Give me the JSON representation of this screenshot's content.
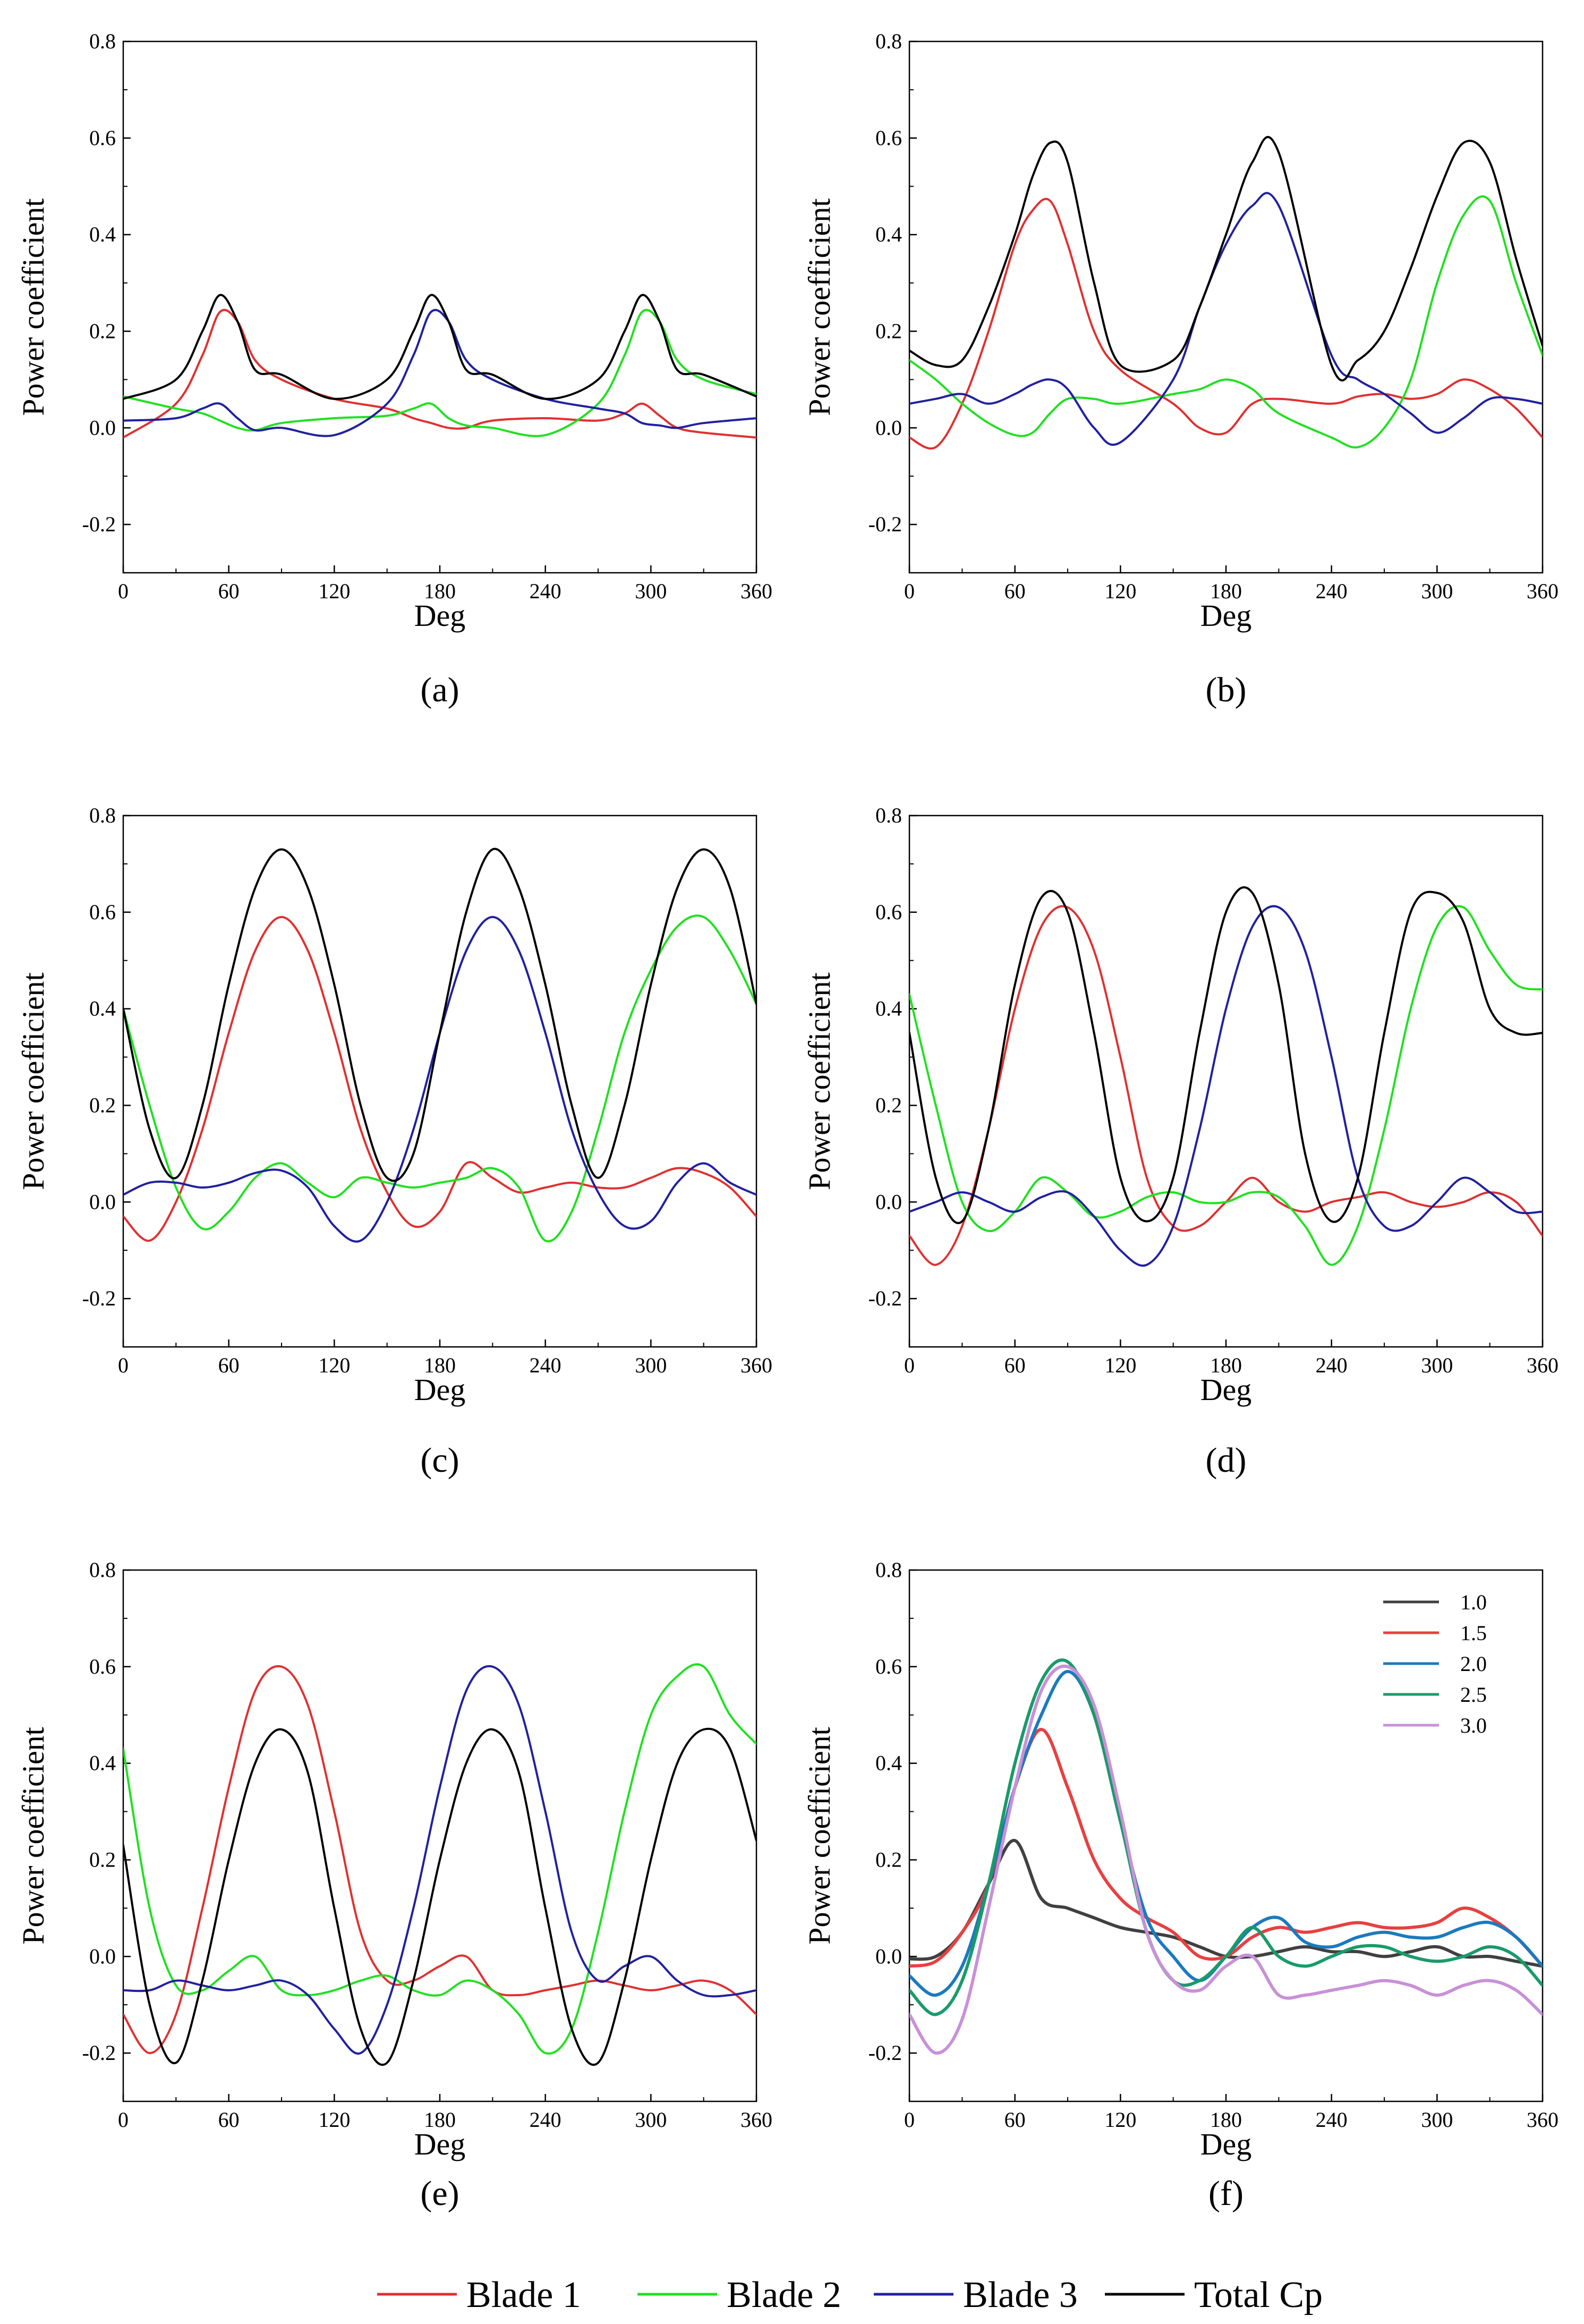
{
  "chart_data": [
    {
      "panel": "a",
      "type": "line",
      "xlabel": "Deg",
      "ylabel": "Power coefficient",
      "xlim": [
        0,
        360
      ],
      "ylim": [
        -0.3,
        0.8
      ],
      "xticks": [
        "0",
        "60",
        "120",
        "180",
        "240",
        "300",
        "360"
      ],
      "yticks": [
        "-0.2",
        "0.0",
        "0.2",
        "0.4",
        "0.6",
        "0.8"
      ],
      "x": [
        0,
        30,
        45,
        55,
        65,
        75,
        90,
        120,
        150,
        165,
        175,
        185,
        195,
        210,
        240,
        270,
        285,
        295,
        305,
        315,
        330,
        360
      ],
      "series": [
        {
          "name": "Blade 1",
          "values": [
            -0.02,
            0.05,
            0.15,
            0.24,
            0.22,
            0.14,
            0.1,
            0.06,
            0.04,
            0.02,
            0.01,
            0.0,
            0.0,
            0.015,
            0.02,
            0.015,
            0.03,
            0.05,
            0.025,
            0.0,
            -0.01,
            -0.02
          ]
        },
        {
          "name": "Blade 2",
          "values": [
            0.065,
            0.04,
            0.03,
            0.015,
            0.0,
            -0.005,
            0.01,
            0.02,
            0.025,
            0.04,
            0.05,
            0.02,
            0.005,
            0.0,
            -0.015,
            0.05,
            0.15,
            0.24,
            0.22,
            0.14,
            0.1,
            0.07
          ]
        },
        {
          "name": "Blade 3",
          "values": [
            0.015,
            0.02,
            0.04,
            0.05,
            0.02,
            -0.005,
            0.0,
            -0.015,
            0.05,
            0.15,
            0.24,
            0.22,
            0.14,
            0.1,
            0.06,
            0.04,
            0.03,
            0.01,
            0.005,
            0.0,
            0.01,
            0.02
          ]
        },
        {
          "name": "Total Cp",
          "values": [
            0.06,
            0.1,
            0.2,
            0.275,
            0.22,
            0.12,
            0.11,
            0.06,
            0.1,
            0.2,
            0.275,
            0.22,
            0.12,
            0.11,
            0.06,
            0.1,
            0.2,
            0.275,
            0.22,
            0.12,
            0.11,
            0.065
          ]
        }
      ]
    },
    {
      "panel": "b",
      "type": "line",
      "xlabel": "Deg",
      "ylabel": "Power coefficient",
      "xlim": [
        0,
        360
      ],
      "ylim": [
        -0.3,
        0.8
      ],
      "xticks": [
        "0",
        "60",
        "120",
        "180",
        "240",
        "300",
        "360"
      ],
      "yticks": [
        "-0.2",
        "0.0",
        "0.2",
        "0.4",
        "0.6",
        "0.8"
      ],
      "x": [
        0,
        15,
        30,
        45,
        60,
        70,
        80,
        90,
        105,
        120,
        150,
        165,
        180,
        195,
        210,
        240,
        255,
        270,
        285,
        300,
        315,
        330,
        345,
        360
      ],
      "series": [
        {
          "name": "Blade 1",
          "values": [
            -0.02,
            -0.04,
            0.05,
            0.2,
            0.38,
            0.45,
            0.47,
            0.38,
            0.2,
            0.12,
            0.05,
            0.0,
            -0.01,
            0.05,
            0.06,
            0.05,
            0.065,
            0.07,
            0.06,
            0.07,
            0.1,
            0.08,
            0.04,
            -0.02
          ]
        },
        {
          "name": "Blade 2",
          "values": [
            0.14,
            0.1,
            0.05,
            0.01,
            -0.015,
            -0.01,
            0.03,
            0.06,
            0.06,
            0.05,
            0.07,
            0.08,
            0.1,
            0.08,
            0.03,
            -0.02,
            -0.04,
            0.0,
            0.1,
            0.3,
            0.44,
            0.47,
            0.3,
            0.15
          ]
        },
        {
          "name": "Blade 3",
          "values": [
            0.05,
            0.06,
            0.07,
            0.05,
            0.07,
            0.09,
            0.1,
            0.08,
            0.0,
            -0.03,
            0.1,
            0.25,
            0.38,
            0.46,
            0.46,
            0.15,
            0.1,
            0.07,
            0.03,
            -0.01,
            0.02,
            0.06,
            0.06,
            0.05
          ]
        },
        {
          "name": "Total Cp",
          "values": [
            0.16,
            0.13,
            0.14,
            0.25,
            0.4,
            0.52,
            0.59,
            0.55,
            0.3,
            0.13,
            0.14,
            0.25,
            0.4,
            0.55,
            0.57,
            0.13,
            0.14,
            0.2,
            0.33,
            0.48,
            0.59,
            0.55,
            0.35,
            0.17
          ]
        }
      ]
    },
    {
      "panel": "c",
      "type": "line",
      "xlabel": "Deg",
      "ylabel": "Power coefficient",
      "xlim": [
        0,
        360
      ],
      "ylim": [
        -0.3,
        0.8
      ],
      "xticks": [
        "0",
        "60",
        "120",
        "180",
        "240",
        "300",
        "360"
      ],
      "yticks": [
        "-0.2",
        "0.0",
        "0.2",
        "0.4",
        "0.6",
        "0.8"
      ],
      "x": [
        0,
        15,
        30,
        45,
        60,
        75,
        90,
        105,
        120,
        135,
        150,
        165,
        180,
        195,
        210,
        225,
        240,
        255,
        270,
        285,
        300,
        315,
        330,
        345,
        360
      ],
      "series": [
        {
          "name": "Blade 1",
          "values": [
            -0.03,
            -0.08,
            0.0,
            0.15,
            0.35,
            0.52,
            0.59,
            0.52,
            0.35,
            0.15,
            0.02,
            -0.05,
            -0.02,
            0.08,
            0.05,
            0.02,
            0.03,
            0.04,
            0.03,
            0.03,
            0.05,
            0.07,
            0.06,
            0.03,
            -0.03
          ]
        },
        {
          "name": "Blade 2",
          "values": [
            0.4,
            0.2,
            0.03,
            -0.055,
            -0.02,
            0.05,
            0.08,
            0.04,
            0.01,
            0.05,
            0.04,
            0.03,
            0.04,
            0.05,
            0.07,
            0.03,
            -0.08,
            -0.02,
            0.15,
            0.35,
            0.48,
            0.57,
            0.59,
            0.52,
            0.41
          ]
        },
        {
          "name": "Blade 3",
          "values": [
            0.015,
            0.04,
            0.04,
            0.03,
            0.04,
            0.06,
            0.065,
            0.03,
            -0.05,
            -0.08,
            0.0,
            0.15,
            0.35,
            0.52,
            0.59,
            0.52,
            0.35,
            0.15,
            0.02,
            -0.05,
            -0.04,
            0.04,
            0.08,
            0.04,
            0.015
          ]
        },
        {
          "name": "Total Cp",
          "values": [
            0.4,
            0.15,
            0.05,
            0.2,
            0.45,
            0.65,
            0.73,
            0.65,
            0.45,
            0.2,
            0.05,
            0.1,
            0.35,
            0.6,
            0.73,
            0.65,
            0.45,
            0.2,
            0.05,
            0.2,
            0.45,
            0.65,
            0.73,
            0.65,
            0.41
          ]
        }
      ]
    },
    {
      "panel": "d",
      "type": "line",
      "xlabel": "Deg",
      "ylabel": "Power coefficient",
      "xlim": [
        0,
        360
      ],
      "ylim": [
        -0.3,
        0.8
      ],
      "xticks": [
        "0",
        "60",
        "120",
        "180",
        "240",
        "300",
        "360"
      ],
      "yticks": [
        "-0.2",
        "0.0",
        "0.2",
        "0.4",
        "0.6",
        "0.8"
      ],
      "x": [
        0,
        15,
        30,
        45,
        60,
        75,
        90,
        105,
        120,
        135,
        150,
        165,
        180,
        195,
        210,
        225,
        240,
        255,
        270,
        285,
        300,
        315,
        330,
        345,
        360
      ],
      "series": [
        {
          "name": "Blade 1",
          "values": [
            -0.07,
            -0.13,
            -0.05,
            0.15,
            0.4,
            0.57,
            0.61,
            0.52,
            0.3,
            0.05,
            -0.05,
            -0.05,
            0.0,
            0.05,
            0.0,
            -0.02,
            0.0,
            0.01,
            0.02,
            0.0,
            -0.01,
            0.0,
            0.02,
            0.0,
            -0.07
          ]
        },
        {
          "name": "Blade 2",
          "values": [
            0.43,
            0.2,
            0.0,
            -0.06,
            -0.02,
            0.05,
            0.02,
            -0.03,
            -0.02,
            0.01,
            0.02,
            0.0,
            0.0,
            0.02,
            0.01,
            -0.05,
            -0.13,
            -0.05,
            0.15,
            0.4,
            0.57,
            0.61,
            0.52,
            0.45,
            0.44
          ]
        },
        {
          "name": "Blade 3",
          "values": [
            -0.02,
            0.0,
            0.02,
            0.0,
            -0.02,
            0.01,
            0.02,
            -0.03,
            -0.1,
            -0.13,
            -0.05,
            0.15,
            0.4,
            0.57,
            0.61,
            0.52,
            0.3,
            0.05,
            -0.05,
            -0.05,
            0.0,
            0.05,
            0.02,
            -0.02,
            -0.02
          ]
        },
        {
          "name": "Total Cp",
          "values": [
            0.35,
            0.05,
            -0.04,
            0.15,
            0.45,
            0.63,
            0.6,
            0.35,
            0.05,
            -0.04,
            0.05,
            0.35,
            0.6,
            0.64,
            0.45,
            0.1,
            -0.04,
            0.05,
            0.35,
            0.6,
            0.64,
            0.58,
            0.4,
            0.35,
            0.35
          ]
        }
      ]
    },
    {
      "panel": "e",
      "type": "line",
      "xlabel": "Deg",
      "ylabel": "Power coefficient",
      "xlim": [
        0,
        360
      ],
      "ylim": [
        -0.3,
        0.8
      ],
      "xticks": [
        "0",
        "60",
        "120",
        "180",
        "240",
        "300",
        "360"
      ],
      "yticks": [
        "-0.2",
        "0.0",
        "0.2",
        "0.4",
        "0.6",
        "0.8"
      ],
      "x": [
        0,
        15,
        30,
        45,
        60,
        75,
        90,
        105,
        120,
        135,
        150,
        165,
        180,
        195,
        210,
        225,
        240,
        255,
        270,
        285,
        300,
        315,
        330,
        345,
        360
      ],
      "series": [
        {
          "name": "Blade 1",
          "values": [
            -0.12,
            -0.2,
            -0.12,
            0.1,
            0.35,
            0.55,
            0.6,
            0.52,
            0.3,
            0.05,
            -0.05,
            -0.05,
            -0.02,
            0.0,
            -0.07,
            -0.08,
            -0.07,
            -0.06,
            -0.05,
            -0.06,
            -0.07,
            -0.06,
            -0.05,
            -0.07,
            -0.12
          ]
        },
        {
          "name": "Blade 2",
          "values": [
            0.43,
            0.1,
            -0.06,
            -0.07,
            -0.03,
            0.0,
            -0.07,
            -0.08,
            -0.07,
            -0.05,
            -0.04,
            -0.07,
            -0.08,
            -0.05,
            -0.07,
            -0.12,
            -0.2,
            -0.15,
            0.05,
            0.3,
            0.5,
            0.58,
            0.6,
            0.5,
            0.44
          ]
        },
        {
          "name": "Blade 3",
          "values": [
            -0.07,
            -0.07,
            -0.05,
            -0.06,
            -0.07,
            -0.06,
            -0.05,
            -0.08,
            -0.15,
            -0.2,
            -0.1,
            0.1,
            0.35,
            0.55,
            0.6,
            0.52,
            0.3,
            0.05,
            -0.05,
            -0.02,
            0.0,
            -0.05,
            -0.08,
            -0.08,
            -0.07
          ]
        },
        {
          "name": "Total Cp",
          "values": [
            0.23,
            -0.1,
            -0.22,
            -0.05,
            0.2,
            0.4,
            0.47,
            0.38,
            0.1,
            -0.15,
            -0.22,
            -0.05,
            0.2,
            0.4,
            0.47,
            0.38,
            0.1,
            -0.15,
            -0.22,
            -0.05,
            0.2,
            0.4,
            0.47,
            0.43,
            0.24
          ]
        }
      ]
    },
    {
      "panel": "f",
      "type": "line",
      "xlabel": "Deg",
      "ylabel": "Power coefficient",
      "xlim": [
        0,
        360
      ],
      "ylim": [
        -0.3,
        0.8
      ],
      "xticks": [
        "0",
        "60",
        "120",
        "180",
        "240",
        "300",
        "360"
      ],
      "yticks": [
        "-0.2",
        "0.0",
        "0.2",
        "0.4",
        "0.6",
        "0.8"
      ],
      "legend_position": "top-right",
      "x": [
        0,
        15,
        30,
        45,
        60,
        75,
        90,
        105,
        120,
        135,
        150,
        165,
        180,
        195,
        210,
        225,
        240,
        255,
        270,
        285,
        300,
        315,
        330,
        345,
        360
      ],
      "series": [
        {
          "name": "1.0",
          "color": "#404040",
          "values": [
            -0.005,
            0.0,
            0.05,
            0.15,
            0.24,
            0.12,
            0.1,
            0.08,
            0.06,
            0.05,
            0.04,
            0.02,
            0.0,
            0.0,
            0.01,
            0.02,
            0.01,
            0.01,
            0.0,
            0.01,
            0.02,
            0.0,
            0.0,
            -0.01,
            -0.02
          ]
        },
        {
          "name": "1.5",
          "color": "#e84040",
          "values": [
            -0.02,
            -0.01,
            0.05,
            0.15,
            0.35,
            0.47,
            0.35,
            0.2,
            0.12,
            0.08,
            0.05,
            0.0,
            0.0,
            0.04,
            0.06,
            0.05,
            0.06,
            0.07,
            0.06,
            0.06,
            0.07,
            0.1,
            0.08,
            0.04,
            -0.02
          ]
        },
        {
          "name": "2.0",
          "color": "#1a7abf",
          "values": [
            -0.04,
            -0.08,
            -0.02,
            0.15,
            0.35,
            0.5,
            0.59,
            0.5,
            0.28,
            0.08,
            0.0,
            -0.05,
            0.0,
            0.06,
            0.08,
            0.03,
            0.02,
            0.04,
            0.05,
            0.04,
            0.04,
            0.06,
            0.07,
            0.04,
            -0.02
          ]
        },
        {
          "name": "2.5",
          "color": "#1a9a6a",
          "values": [
            -0.07,
            -0.12,
            -0.05,
            0.15,
            0.4,
            0.57,
            0.61,
            0.5,
            0.28,
            0.05,
            -0.05,
            -0.05,
            0.0,
            0.06,
            0.0,
            -0.02,
            0.0,
            0.02,
            0.02,
            0.0,
            -0.01,
            0.0,
            0.02,
            0.0,
            -0.06
          ]
        },
        {
          "name": "3.0",
          "color": "#c890d8",
          "values": [
            -0.12,
            -0.2,
            -0.13,
            0.1,
            0.35,
            0.55,
            0.6,
            0.52,
            0.3,
            0.05,
            -0.05,
            -0.07,
            -0.02,
            0.0,
            -0.08,
            -0.08,
            -0.07,
            -0.06,
            -0.05,
            -0.06,
            -0.08,
            -0.06,
            -0.05,
            -0.07,
            -0.12
          ]
        }
      ]
    }
  ],
  "panel_labels": [
    "(a)",
    "(b)",
    "(c)",
    "(d)",
    "(e)",
    "(f)"
  ],
  "legend": {
    "items": [
      {
        "label": "Blade 1",
        "color": "#e03030"
      },
      {
        "label": "Blade 2",
        "color": "#20e020"
      },
      {
        "label": "Blade 3",
        "color": "#2020a0"
      },
      {
        "label": "Total Cp",
        "color": "#000000"
      }
    ]
  },
  "colors": {
    "blade1": "#e03030",
    "blade2": "#20e020",
    "blade3": "#2020a0",
    "total": "#000000"
  }
}
